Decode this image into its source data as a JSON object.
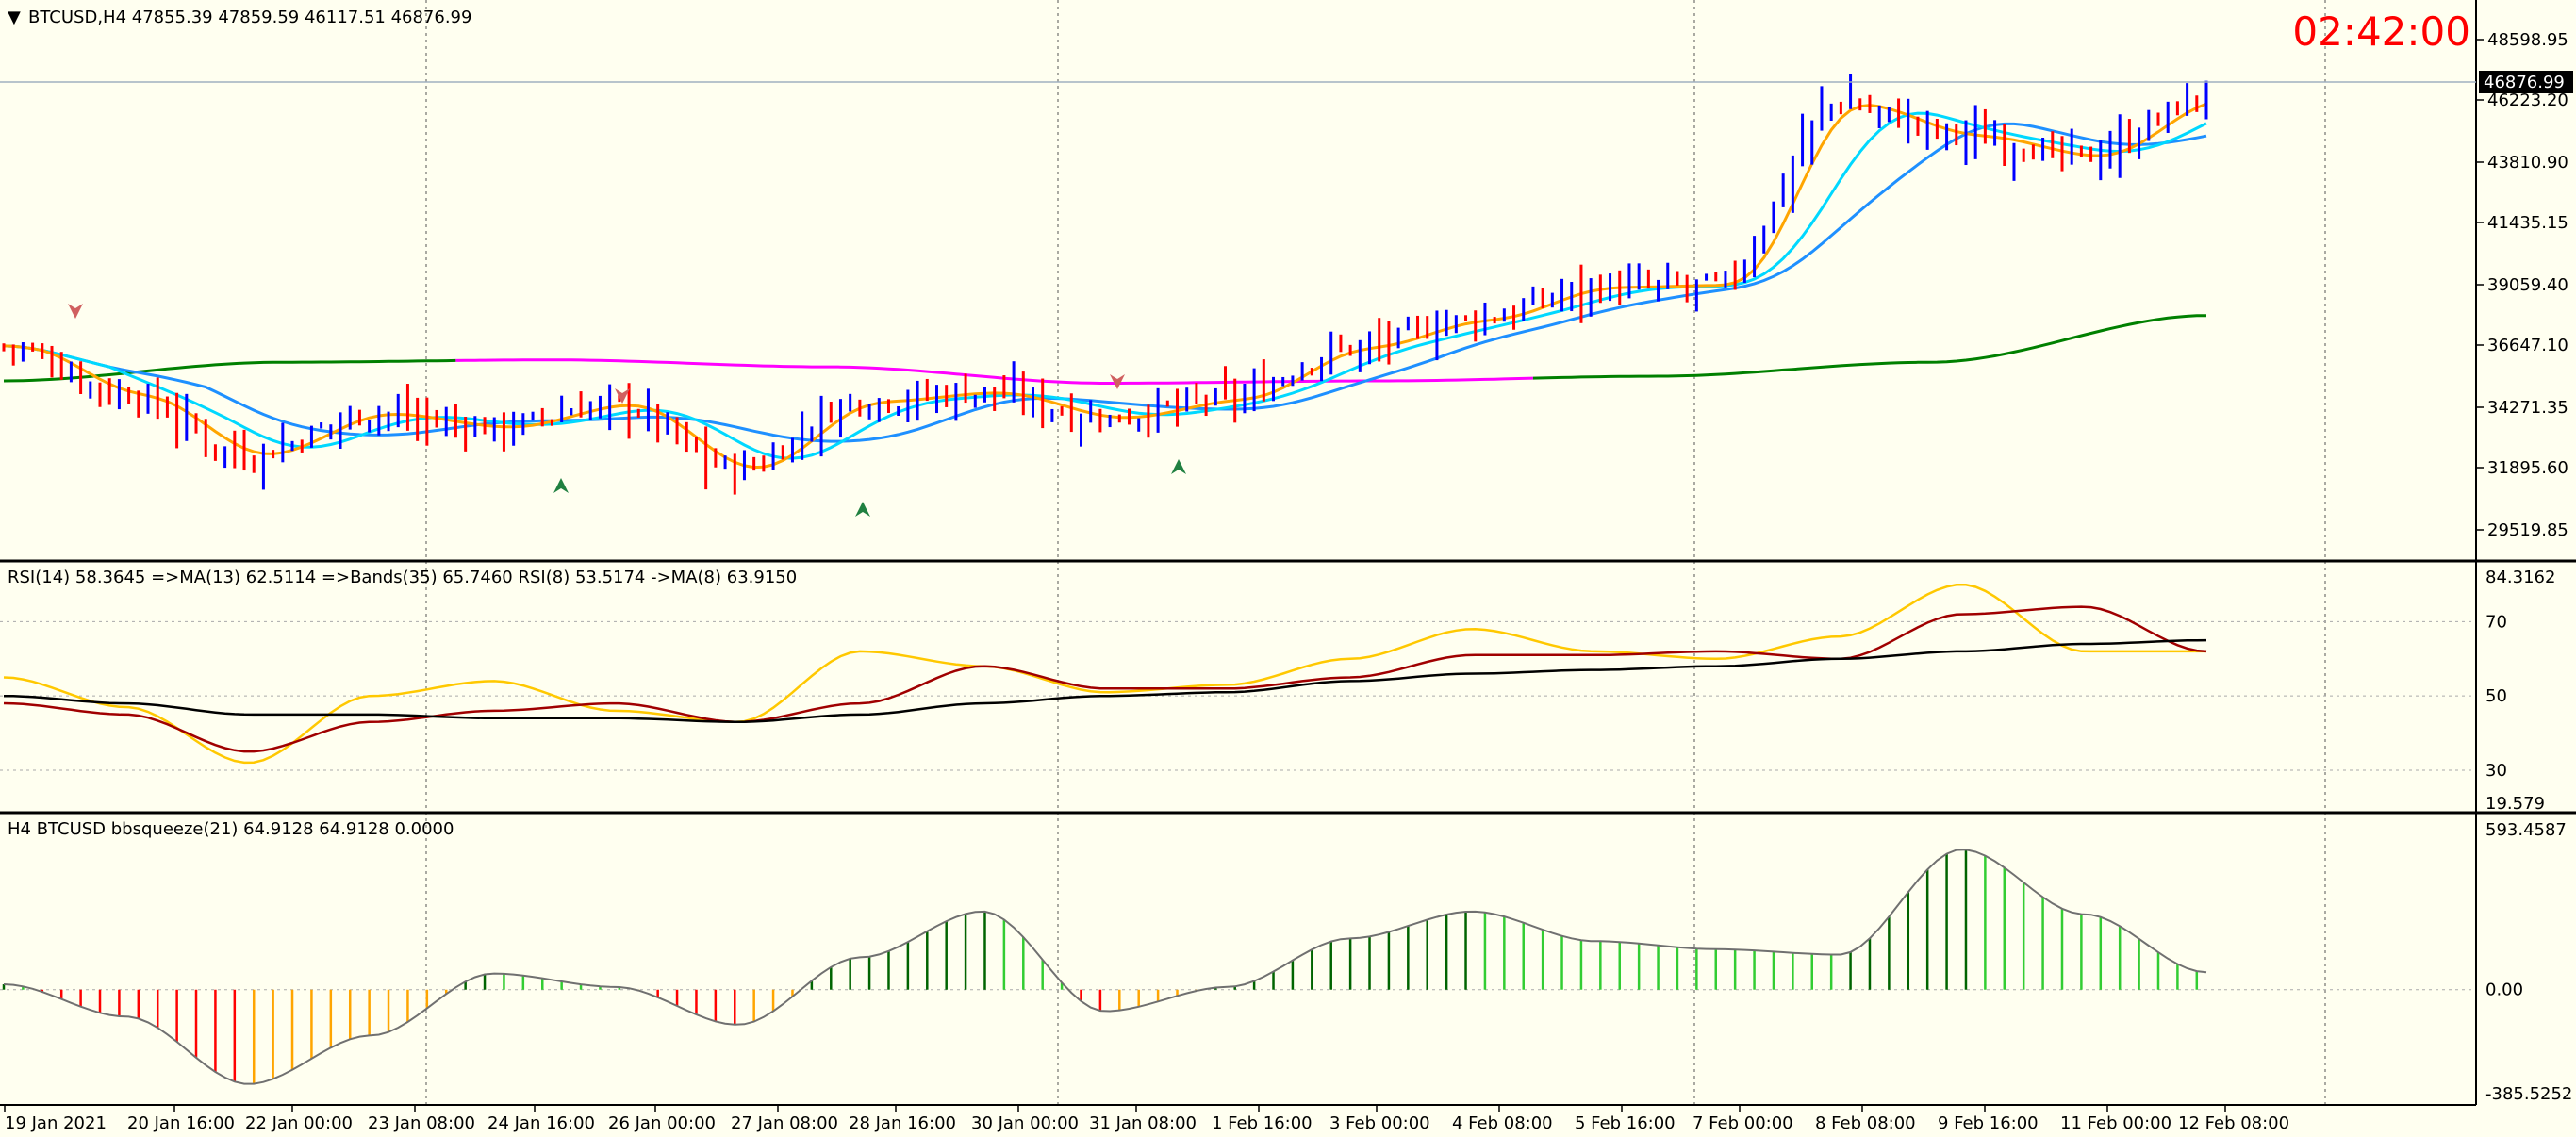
{
  "main": {
    "header": "BTCUSD,H4  47855.39 47859.59 46117.51 46876.99",
    "clock": "02:42:00",
    "current_price_label": "46876.99",
    "price_ticks": [
      "48598.95",
      "46223.20",
      "43810.90",
      "41435.15",
      "39059.40",
      "36647.10",
      "34271.35",
      "31895.60",
      "29519.85"
    ]
  },
  "rsi_panel": {
    "header": "RSI(14) 58.3645  =>MA(13) 62.5114  =>Bands(35) 65.7460  RSI(8) 53.5174  ->MA(8) 63.9150",
    "ticks": [
      "84.3162",
      "70",
      "50",
      "30",
      "19.579"
    ]
  },
  "squeeze_panel": {
    "header": "H4 BTCUSD bbsqueeze(21) 64.9128 64.9128 0.0000",
    "ticks": [
      "593.4587",
      "0.00",
      "-385.5252"
    ]
  },
  "time_axis": [
    "19 Jan 2021",
    "20 Jan 16:00",
    "22 Jan 00:00",
    "23 Jan 08:00",
    "24 Jan 16:00",
    "26 Jan 00:00",
    "27 Jan 08:00",
    "28 Jan 16:00",
    "30 Jan 00:00",
    "31 Jan 08:00",
    "1 Feb 16:00",
    "3 Feb 00:00",
    "4 Feb 08:00",
    "5 Feb 16:00",
    "7 Feb 00:00",
    "8 Feb 08:00",
    "9 Feb 16:00",
    "11 Feb 00:00",
    "12 Feb 08:00"
  ],
  "colors": {
    "background": "#fffff0",
    "bull_bar": "#0000ff",
    "bear_bar": "#ff0000",
    "ma_fast": "#ffa500",
    "ma_cyan": "#00d8ff",
    "ma_blue": "#1e90ff",
    "ma_long_green": "#008000",
    "ma_long_magenta": "#ff00ff",
    "rsi_yellow": "#ffc800",
    "rsi_darkred": "#a00000",
    "rsi_black": "#000000",
    "squeeze_green_dark": "#006400",
    "squeeze_green_light": "#32cd32",
    "squeeze_red": "#ff0000",
    "squeeze_orange": "#ffa500"
  },
  "chart_data": [
    {
      "type": "candlestick",
      "symbol": "BTCUSD",
      "timeframe": "H4",
      "ohlc_last": {
        "open": 47855.39,
        "high": 47859.59,
        "low": 46117.51,
        "close": 46876.99
      },
      "x": [
        "19 Jan 2021",
        "20 Jan 16:00",
        "22 Jan 00:00",
        "23 Jan 08:00",
        "24 Jan 16:00",
        "26 Jan 00:00",
        "27 Jan 08:00",
        "28 Jan 16:00",
        "30 Jan 00:00",
        "31 Jan 08:00",
        "1 Feb 16:00",
        "3 Feb 00:00",
        "4 Feb 08:00",
        "5 Feb 16:00",
        "7 Feb 00:00",
        "8 Feb 08:00",
        "9 Feb 16:00",
        "11 Feb 00:00",
        "12 Feb 08:00"
      ],
      "close_approx": [
        36300,
        34200,
        31600,
        33400,
        32800,
        33800,
        31000,
        33900,
        34300,
        33200,
        34000,
        36200,
        37400,
        38800,
        38900,
        46700,
        45300,
        44400,
        46900
      ],
      "ylim": [
        28500,
        49500
      ],
      "grid": "dotted vertical"
    },
    {
      "type": "line",
      "title": "RSI(14) 58.3645  =>MA(13) 62.5114  =>Bands(35) 65.7460  RSI(8) 53.5174  ->MA(8) 63.9150",
      "x": [
        "19 Jan 2021",
        "20 Jan 16:00",
        "22 Jan 00:00",
        "23 Jan 08:00",
        "24 Jan 16:00",
        "26 Jan 00:00",
        "27 Jan 08:00",
        "28 Jan 16:00",
        "30 Jan 00:00",
        "31 Jan 08:00",
        "1 Feb 16:00",
        "3 Feb 00:00",
        "4 Feb 08:00",
        "5 Feb 16:00",
        "7 Feb 00:00",
        "8 Feb 08:00",
        "9 Feb 16:00",
        "11 Feb 00:00",
        "12 Feb 08:00"
      ],
      "series": [
        {
          "values": [
            55,
            47,
            32,
            50,
            54,
            46,
            43,
            62,
            58,
            51,
            53,
            60,
            68,
            62,
            60,
            66,
            80,
            62,
            62
          ]
        },
        {
          "values": [
            48,
            45,
            35,
            43,
            46,
            48,
            43,
            48,
            58,
            52,
            52,
            55,
            61,
            61,
            62,
            60,
            72,
            74,
            62
          ]
        },
        {
          "values": [
            50,
            48,
            45,
            45,
            44,
            44,
            43,
            45,
            48,
            50,
            51,
            54,
            56,
            57,
            58,
            60,
            62,
            64,
            65
          ]
        }
      ],
      "ylim": [
        19.579,
        84.3162
      ],
      "levels": [
        70,
        50,
        30
      ]
    },
    {
      "type": "histogram",
      "title": "H4 BTCUSD bbsqueeze(21) 64.9128 64.9128 0.0000",
      "x": [
        "19 Jan 2021",
        "20 Jan 16:00",
        "22 Jan 00:00",
        "23 Jan 08:00",
        "24 Jan 16:00",
        "26 Jan 00:00",
        "27 Jan 08:00",
        "28 Jan 16:00",
        "30 Jan 00:00",
        "31 Jan 08:00",
        "1 Feb 16:00",
        "3 Feb 00:00",
        "4 Feb 08:00",
        "5 Feb 16:00",
        "7 Feb 00:00",
        "8 Feb 08:00",
        "9 Feb 16:00",
        "11 Feb 00:00",
        "12 Feb 08:00"
      ],
      "values": [
        20,
        -100,
        -350,
        -170,
        60,
        10,
        -130,
        120,
        290,
        -80,
        10,
        190,
        290,
        180,
        150,
        130,
        520,
        280,
        64.9128
      ],
      "ylim": [
        -385.5252,
        593.4587
      ]
    }
  ]
}
